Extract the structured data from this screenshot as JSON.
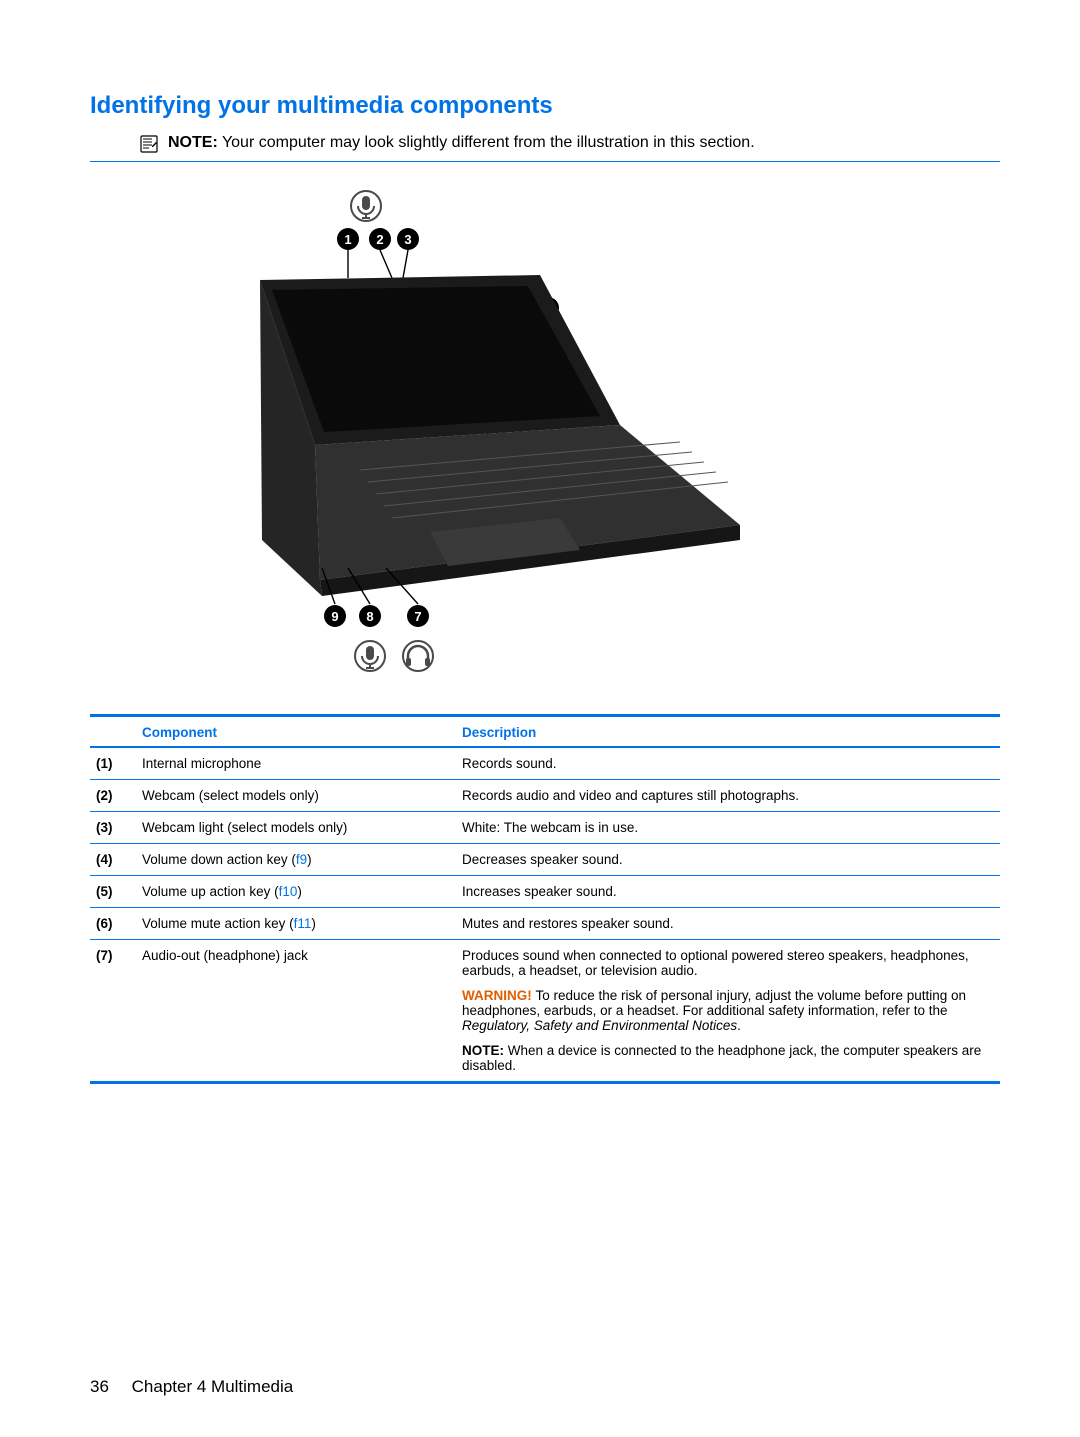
{
  "colors": {
    "accent": "#0073e6",
    "warn": "#e06000",
    "rule": "#0073e6",
    "text": "#000000"
  },
  "heading": "Identifying your multimedia components",
  "note": {
    "label": "NOTE:",
    "text": "Your computer may look slightly different from the illustration in this section."
  },
  "table": {
    "headers": {
      "component": "Component",
      "description": "Description"
    },
    "header_color": "#0073e6",
    "rows": [
      {
        "num": "(1)",
        "component": "Internal microphone",
        "desc": [
          {
            "plain": "Records sound."
          }
        ]
      },
      {
        "num": "(2)",
        "component": "Webcam (select models only)",
        "desc": [
          {
            "plain": "Records audio and video and captures still photographs."
          }
        ]
      },
      {
        "num": "(3)",
        "component": "Webcam light (select models only)",
        "desc": [
          {
            "plain": "White: The webcam is in use."
          }
        ]
      },
      {
        "num": "(4)",
        "component_pre": "Volume down action key (",
        "key": "f9",
        "component_post": ")",
        "desc": [
          {
            "plain": "Decreases speaker sound."
          }
        ]
      },
      {
        "num": "(5)",
        "component_pre": "Volume up action key (",
        "key": "f10",
        "component_post": ")",
        "desc": [
          {
            "plain": "Increases speaker sound."
          }
        ]
      },
      {
        "num": "(6)",
        "component_pre": "Volume mute action key (",
        "key": "f11",
        "component_post": ")",
        "desc": [
          {
            "plain": "Mutes and restores speaker sound."
          }
        ]
      },
      {
        "num": "(7)",
        "component": "Audio-out (headphone) jack",
        "desc": [
          {
            "plain": "Produces sound when connected to optional powered stereo speakers, headphones, earbuds, a headset, or television audio."
          },
          {
            "warn_label": "WARNING!",
            "warn_text": "To reduce the risk of personal injury, adjust the volume before putting on headphones, earbuds, or a headset. For additional safety information, refer to the ",
            "warn_italic": "Regulatory, Safety and Environmental Notices",
            "warn_tail": "."
          },
          {
            "note_label": "NOTE:",
            "note_text": "When a device is connected to the headphone jack, the computer speakers are disabled."
          }
        ]
      }
    ]
  },
  "footer": {
    "page": "36",
    "chapter": "Chapter 4   Multimedia"
  },
  "icons": {
    "note": "note-icon",
    "mic": "mic-icon",
    "headphone": "headphone-icon"
  }
}
